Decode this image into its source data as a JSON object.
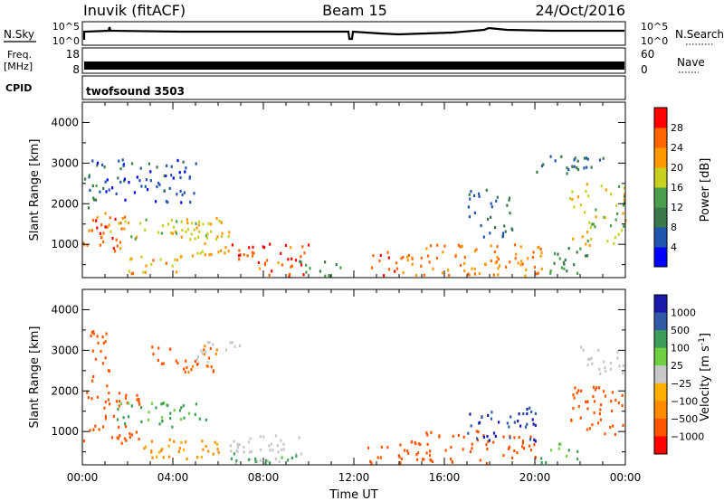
{
  "header": {
    "station": "Inuvik (fitACF)",
    "beam": "Beam 15",
    "date": "24/Oct/2016"
  },
  "noise_panel": {
    "left_label": "N.Sky",
    "left_ticks": [
      "10^5",
      "10^0"
    ],
    "right_label": "N.Search",
    "right_ticks": [
      "10^5",
      "10^0"
    ]
  },
  "freq_panel": {
    "left_label_line1": "Freq.",
    "left_label_line2": "[MHz]",
    "left_ticks": [
      "18",
      "8"
    ],
    "right_label": "Nave",
    "right_ticks": [
      "60",
      "0"
    ]
  },
  "cpid_panel": {
    "left_label": "CPID",
    "program": "twofsound 3503"
  },
  "colors": {
    "power_scale": [
      "#0000ff",
      "#2255b0",
      "#3a7a4a",
      "#4aa04a",
      "#c8d020",
      "#ff9900",
      "#ff6600",
      "#ff0000"
    ],
    "velocity_scale": [
      "#ff0000",
      "#ff5500",
      "#ff8c00",
      "#ffb000",
      "#c8c8c8",
      "#6fd040",
      "#3c9c5a",
      "#2e5aa8",
      "#1a1aa8"
    ]
  },
  "chart_data": [
    {
      "type": "heatmap",
      "name": "power",
      "xlabel": "",
      "ylabel": "Slant Range [km]",
      "y_ticks": [
        "1000",
        "2000",
        "3000",
        "4000"
      ],
      "ylim": [
        180,
        4500
      ],
      "xlim": [
        0,
        24
      ],
      "colorbar_label": "Power [dB]",
      "colorbar_ticks": [
        "4",
        "8",
        "12",
        "16",
        "20",
        "24",
        "28"
      ],
      "colorbar_range": [
        0,
        32
      ],
      "regions": [
        {
          "x0": 0.0,
          "x1": 2.0,
          "y0": 700,
          "y1": 1800,
          "value": 26
        },
        {
          "x0": 0.0,
          "x1": 0.6,
          "y0": 1800,
          "y1": 2700,
          "value": 12
        },
        {
          "x0": 1.0,
          "x1": 6.0,
          "y0": 1100,
          "y1": 1600,
          "value": 18
        },
        {
          "x0": 2.0,
          "x1": 4.5,
          "y0": 250,
          "y1": 800,
          "value": 22
        },
        {
          "x0": 4.5,
          "x1": 6.5,
          "y0": 700,
          "y1": 1700,
          "value": 20
        },
        {
          "x0": 6.5,
          "x1": 10.0,
          "y0": 200,
          "y1": 1000,
          "value": 27
        },
        {
          "x0": 9.5,
          "x1": 11.5,
          "y0": 200,
          "y1": 600,
          "value": 12
        },
        {
          "x0": 12.5,
          "x1": 14.0,
          "y0": 200,
          "y1": 900,
          "value": 28
        },
        {
          "x0": 14.0,
          "x1": 20.5,
          "y0": 200,
          "y1": 1000,
          "value": 24
        },
        {
          "x0": 17.0,
          "x1": 19.0,
          "y0": 1000,
          "y1": 2400,
          "value": 8
        },
        {
          "x0": 20.5,
          "x1": 22.5,
          "y0": 200,
          "y1": 900,
          "value": 12
        },
        {
          "x0": 20.0,
          "x1": 23.0,
          "y0": 2700,
          "y1": 3200,
          "value": 8
        },
        {
          "x0": 21.5,
          "x1": 24.0,
          "y0": 900,
          "y1": 2500,
          "value": 18
        },
        {
          "x0": 0.2,
          "x1": 5.0,
          "y0": 2000,
          "y1": 3100,
          "value": 6
        }
      ]
    },
    {
      "type": "heatmap",
      "name": "velocity",
      "xlabel": "Time UT",
      "ylabel": "Slant Range [km]",
      "x_ticks": [
        "00:00",
        "04:00",
        "08:00",
        "12:00",
        "16:00",
        "20:00",
        "00:00"
      ],
      "y_ticks": [
        "1000",
        "2000",
        "3000",
        "4000"
      ],
      "ylim": [
        180,
        4500
      ],
      "xlim": [
        0,
        24
      ],
      "colorbar_label": "Velocity [m s^-1]",
      "colorbar_ticks": [
        "1000",
        "500",
        "100",
        "25",
        "−25",
        "−100",
        "−500",
        "−1000"
      ],
      "regions": [
        {
          "x0": 0.0,
          "x1": 2.5,
          "y0": 700,
          "y1": 2000,
          "value": -300
        },
        {
          "x0": 0.3,
          "x1": 1.2,
          "y0": 2000,
          "y1": 3500,
          "value": -150
        },
        {
          "x0": 1.5,
          "x1": 5.5,
          "y0": 1100,
          "y1": 1700,
          "value": 60
        },
        {
          "x0": 2.0,
          "x1": 6.0,
          "y0": 300,
          "y1": 800,
          "value": -60
        },
        {
          "x0": 3.0,
          "x1": 6.0,
          "y0": 2400,
          "y1": 3100,
          "value": -120
        },
        {
          "x0": 5.0,
          "x1": 7.0,
          "y0": 2700,
          "y1": 3200,
          "value": 10
        },
        {
          "x0": 6.5,
          "x1": 10.0,
          "y0": 200,
          "y1": 900,
          "value": 10
        },
        {
          "x0": 6.5,
          "x1": 9.5,
          "y0": 200,
          "y1": 450,
          "value": 70
        },
        {
          "x0": 12.5,
          "x1": 14.5,
          "y0": 200,
          "y1": 700,
          "value": -200
        },
        {
          "x0": 14.5,
          "x1": 20.0,
          "y0": 200,
          "y1": 1000,
          "value": -300
        },
        {
          "x0": 17.0,
          "x1": 20.0,
          "y0": 700,
          "y1": 1600,
          "value": 500
        },
        {
          "x0": 20.0,
          "x1": 22.0,
          "y0": 200,
          "y1": 700,
          "value": 50
        },
        {
          "x0": 21.5,
          "x1": 24.0,
          "y0": 900,
          "y1": 2100,
          "value": -250
        },
        {
          "x0": 22.0,
          "x1": 24.0,
          "y0": 2400,
          "y1": 3100,
          "value": 10
        }
      ]
    }
  ]
}
